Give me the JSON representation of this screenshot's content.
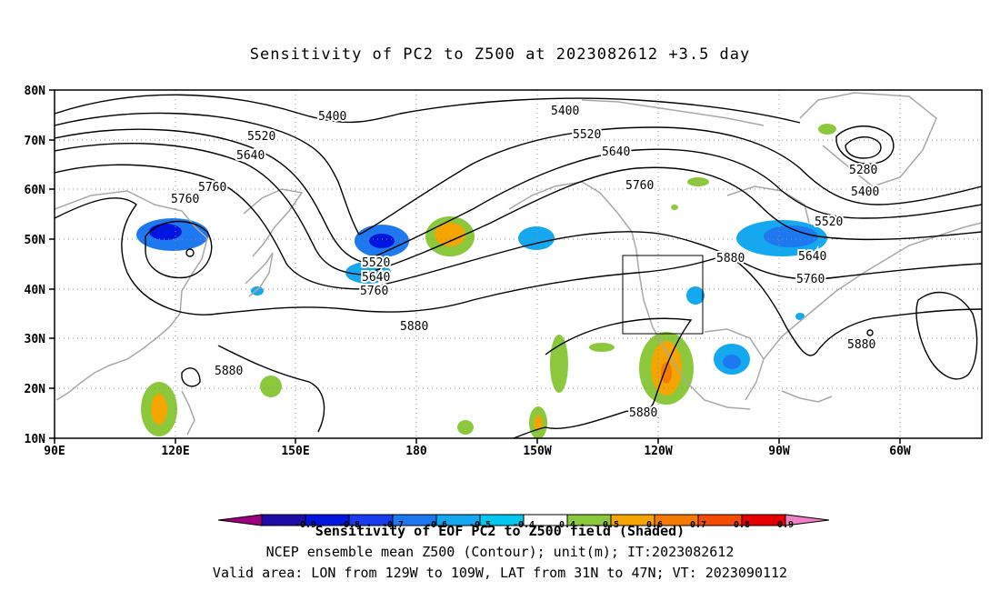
{
  "title": "Sensitivity of PC2 to Z500 at 2023082612 +3.5 day",
  "lat_labels": [
    "80N",
    "70N",
    "60N",
    "50N",
    "40N",
    "30N",
    "20N",
    "10N"
  ],
  "lon_labels": [
    "90E",
    "120E",
    "150E",
    "180",
    "150W",
    "120W",
    "90W",
    "60W"
  ],
  "contour_labels": [
    "5280",
    "5400",
    "5520",
    "5640",
    "5760",
    "5880"
  ],
  "colorbar": {
    "labels": [
      "-0.9",
      "-0.8",
      "-0.7",
      "-0.6",
      "-0.5",
      "-0.4",
      "0.4",
      "0.5",
      "0.6",
      "0.7",
      "0.8",
      "0.9"
    ],
    "colors": [
      "#a0007f",
      "#1c0da8",
      "#0015e0",
      "#1a3cf0",
      "#1e78f0",
      "#14a8f0",
      "#00c8f0",
      "#ffffff",
      "#8cc83c",
      "#f5a500",
      "#f57a00",
      "#f54a00",
      "#e60000",
      "#f080c8"
    ]
  },
  "box": {
    "lon": [
      "129W",
      "109W"
    ],
    "lat": [
      "31N",
      "47N"
    ]
  },
  "captions": {
    "line1": "Sensitivity of EOF PC2 to Z500 field (Shaded)",
    "line2": "NCEP ensemble mean Z500 (Contour); unit(m); IT:2023082612",
    "line3": "Valid area: LON from 129W to 109W, LAT from 31N to 47N; VT: 2023090112"
  }
}
